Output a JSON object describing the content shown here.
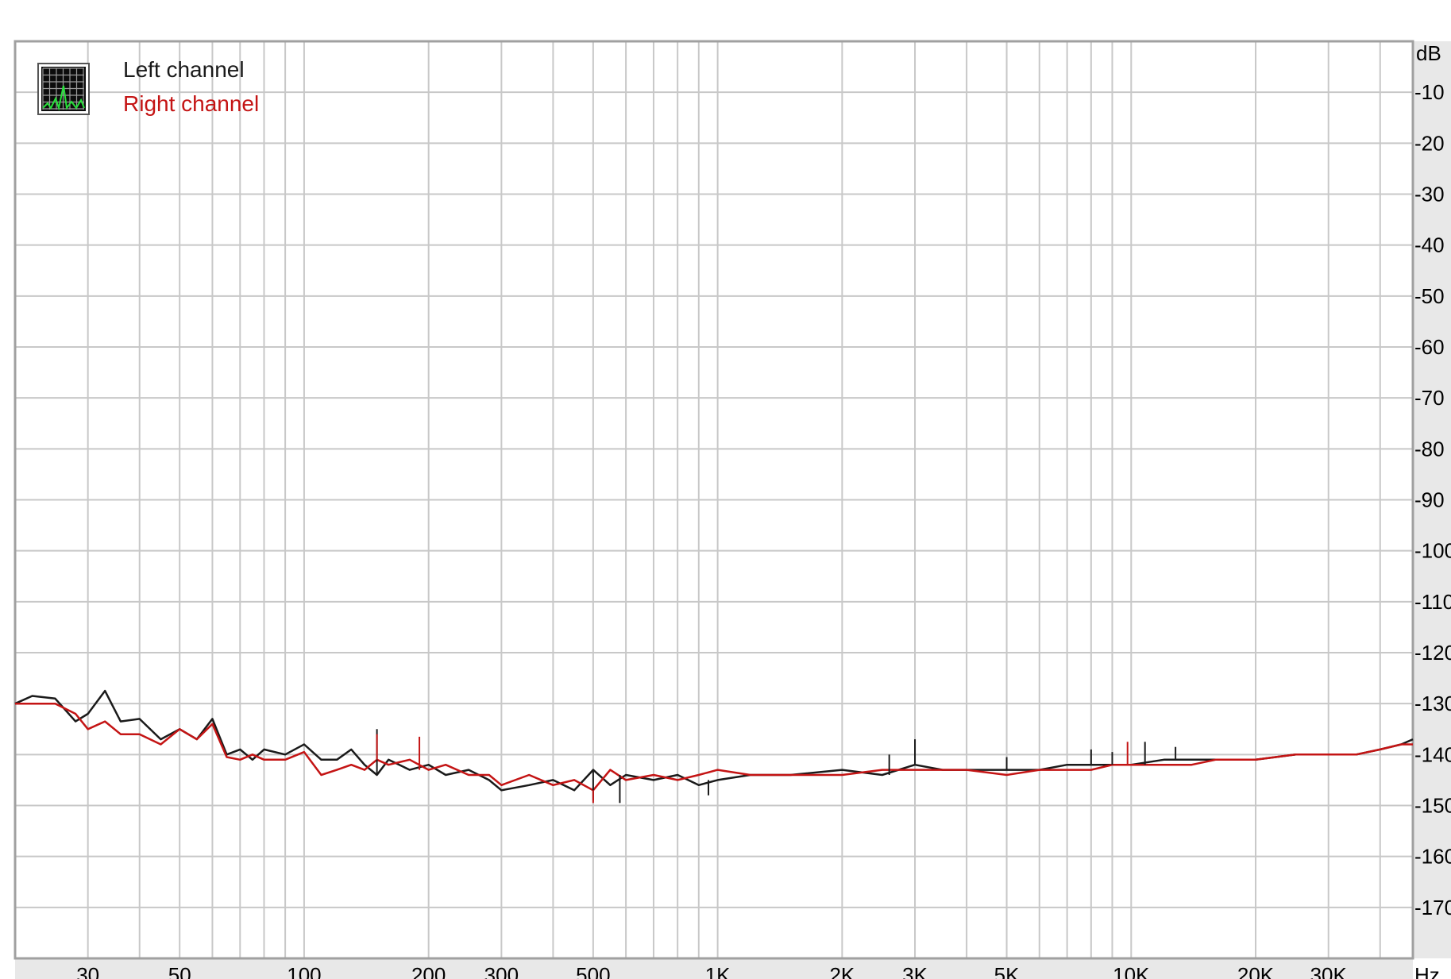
{
  "chart_data": {
    "type": "line",
    "title": "",
    "xlabel": "Hz",
    "ylabel": "dB",
    "x_scale": "log",
    "xlim": [
      20,
      48000
    ],
    "ylim": [
      -180,
      0
    ],
    "grid": true,
    "legend_position": "top-left",
    "x_tick_labels": [
      {
        "x": 30,
        "label": "30"
      },
      {
        "x": 50,
        "label": "50"
      },
      {
        "x": 100,
        "label": "100"
      },
      {
        "x": 200,
        "label": "200"
      },
      {
        "x": 300,
        "label": "300"
      },
      {
        "x": 500,
        "label": "500"
      },
      {
        "x": 1000,
        "label": "1K"
      },
      {
        "x": 2000,
        "label": "2K"
      },
      {
        "x": 3000,
        "label": "3K"
      },
      {
        "x": 5000,
        "label": "5K"
      },
      {
        "x": 10000,
        "label": "10K"
      },
      {
        "x": 20000,
        "label": "20K"
      },
      {
        "x": 30000,
        "label": "30K"
      }
    ],
    "y_tick_labels": [
      {
        "y": -10,
        "label": "-10"
      },
      {
        "y": -20,
        "label": "-20"
      },
      {
        "y": -30,
        "label": "-30"
      },
      {
        "y": -40,
        "label": "-40"
      },
      {
        "y": -50,
        "label": "-50"
      },
      {
        "y": -60,
        "label": "-60"
      },
      {
        "y": -70,
        "label": "-70"
      },
      {
        "y": -80,
        "label": "-80"
      },
      {
        "y": -90,
        "label": "-90"
      },
      {
        "y": -100,
        "label": "-100"
      },
      {
        "y": -110,
        "label": "-110"
      },
      {
        "y": -120,
        "label": "-120"
      },
      {
        "y": -130,
        "label": "-130"
      },
      {
        "y": -140,
        "label": "-140"
      },
      {
        "y": -150,
        "label": "-150"
      },
      {
        "y": -160,
        "label": "-160"
      },
      {
        "y": -170,
        "label": "-170"
      }
    ],
    "series": [
      {
        "name": "Left channel",
        "color": "#1a1a1a",
        "x": [
          20,
          22,
          25,
          28,
          30,
          33,
          36,
          40,
          45,
          50,
          55,
          60,
          65,
          70,
          75,
          80,
          90,
          100,
          110,
          120,
          130,
          140,
          150,
          160,
          180,
          200,
          220,
          250,
          280,
          300,
          350,
          400,
          450,
          500,
          550,
          600,
          700,
          800,
          900,
          1000,
          1200,
          1500,
          2000,
          2500,
          3000,
          3500,
          4000,
          5000,
          6000,
          7000,
          8000,
          9000,
          10000,
          12000,
          14000,
          16000,
          20000,
          25000,
          30000,
          35000,
          40000,
          45000,
          48000
        ],
        "values": [
          -130,
          -128.5,
          -129,
          -133.5,
          -132,
          -127.5,
          -133.5,
          -133,
          -137,
          -135,
          -137,
          -133,
          -140,
          -139,
          -141,
          -139,
          -140,
          -138,
          -141,
          -141,
          -139,
          -142,
          -144,
          -141,
          -143,
          -142,
          -144,
          -143,
          -145,
          -147,
          -146,
          -145,
          -147,
          -143,
          -146,
          -144,
          -145,
          -144,
          -146,
          -145,
          -144,
          -144,
          -143,
          -144,
          -142,
          -143,
          -143,
          -143,
          -143,
          -142,
          -142,
          -142,
          -142,
          -141,
          -141,
          -141,
          -141,
          -140,
          -140,
          -140,
          -139,
          -138,
          -137
        ]
      },
      {
        "name": "Right channel",
        "color": "#c41414",
        "x": [
          20,
          22,
          25,
          28,
          30,
          33,
          36,
          40,
          45,
          50,
          55,
          60,
          65,
          70,
          75,
          80,
          90,
          100,
          110,
          120,
          130,
          140,
          150,
          160,
          180,
          200,
          220,
          250,
          280,
          300,
          350,
          400,
          450,
          500,
          550,
          600,
          700,
          800,
          900,
          1000,
          1200,
          1500,
          2000,
          2500,
          3000,
          3500,
          4000,
          5000,
          6000,
          7000,
          8000,
          9000,
          10000,
          12000,
          14000,
          16000,
          20000,
          25000,
          30000,
          35000,
          40000,
          45000,
          48000
        ],
        "values": [
          -130,
          -130,
          -130,
          -132,
          -135,
          -133.5,
          -136,
          -136,
          -138,
          -135,
          -137,
          -134,
          -140.5,
          -141,
          -140,
          -141,
          -141,
          -139.5,
          -144,
          -143,
          -142,
          -143,
          -141,
          -142,
          -141,
          -143,
          -142,
          -144,
          -144,
          -146,
          -144,
          -146,
          -145,
          -147,
          -143,
          -145,
          -144,
          -145,
          -144,
          -143,
          -144,
          -144,
          -144,
          -143,
          -143,
          -143,
          -143,
          -144,
          -143,
          -143,
          -143,
          -142,
          -142,
          -142,
          -142,
          -141,
          -141,
          -140,
          -140,
          -140,
          -139,
          -138,
          -138
        ]
      }
    ],
    "spikes": [
      {
        "series": 0,
        "x": 150,
        "y": -135
      },
      {
        "series": 1,
        "x": 150,
        "y": -136
      },
      {
        "series": 1,
        "x": 190,
        "y": -136.5
      },
      {
        "series": 0,
        "x": 500,
        "y": -149
      },
      {
        "series": 1,
        "x": 500,
        "y": -149.5
      },
      {
        "series": 0,
        "x": 580,
        "y": -149.5
      },
      {
        "series": 0,
        "x": 950,
        "y": -148
      },
      {
        "series": 0,
        "x": 2600,
        "y": -140
      },
      {
        "series": 0,
        "x": 3000,
        "y": -137
      },
      {
        "series": 0,
        "x": 5000,
        "y": -140.5
      },
      {
        "series": 0,
        "x": 8000,
        "y": -139
      },
      {
        "series": 0,
        "x": 9000,
        "y": -139.5
      },
      {
        "series": 1,
        "x": 9800,
        "y": -137.5
      },
      {
        "series": 0,
        "x": 10800,
        "y": -137.5
      },
      {
        "series": 0,
        "x": 12800,
        "y": -138.5
      }
    ]
  }
}
